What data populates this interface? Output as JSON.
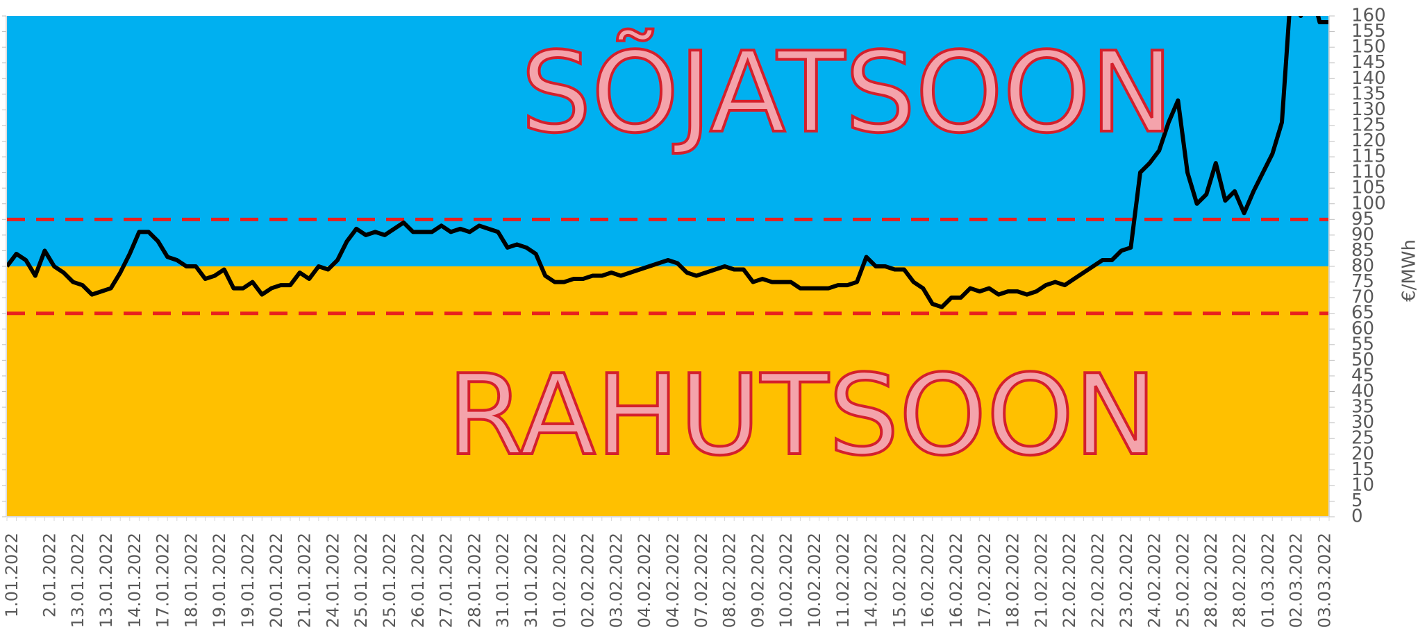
{
  "chart_data": {
    "type": "line",
    "y_label": "€/MWh",
    "categories": [
      "1.01.2022",
      null,
      null,
      null,
      "2.01.2022",
      null,
      null,
      "13.01.2022",
      null,
      null,
      "13.01.2022",
      null,
      null,
      "14.01.2022",
      null,
      null,
      "17.01.2022",
      null,
      null,
      "18.01.2022",
      null,
      null,
      "19.01.2022",
      null,
      null,
      "19.01.2022",
      null,
      null,
      "20.01.2022",
      null,
      null,
      "21.01.2022",
      null,
      null,
      "24.01.2022",
      null,
      null,
      "25.01.2022",
      null,
      null,
      "25.01.2022",
      null,
      null,
      "26.01.2022",
      null,
      null,
      "27.01.2022",
      null,
      null,
      "28.01.2022",
      null,
      null,
      "31.01.2022",
      null,
      null,
      "31.01.2022",
      null,
      null,
      "01.02.2022",
      null,
      null,
      "02.02.2022",
      null,
      null,
      "03.02.2022",
      null,
      null,
      "04.02.2022",
      null,
      null,
      "04.02.2022",
      null,
      null,
      "07.02.2022",
      null,
      null,
      "08.02.2022",
      null,
      null,
      "09.02.2022",
      null,
      null,
      "10.02.2022",
      null,
      null,
      "10.02.2022",
      null,
      null,
      "11.02.2022",
      null,
      null,
      "14.02.2022",
      null,
      null,
      "15.02.2022",
      null,
      null,
      "16.02.2022",
      null,
      null,
      "16.02.2022",
      null,
      null,
      "17.02.2022",
      null,
      null,
      "18.02.2022",
      null,
      null,
      "21.02.2022",
      null,
      null,
      "22.02.2022",
      null,
      null,
      "22.02.2022",
      null,
      null,
      "23.02.2022",
      null,
      null,
      "24.02.2022",
      null,
      null,
      "25.02.2022",
      null,
      null,
      "28.02.2022",
      null,
      null,
      "28.02.2022",
      null,
      null,
      "01.03.2022",
      null,
      null,
      "02.03.2022",
      null,
      null,
      "03.03.2022",
      null
    ],
    "series": [
      {
        "color": "#000000",
        "values": [
          80,
          84,
          82,
          77,
          85,
          80,
          78,
          75,
          74,
          71,
          72,
          73,
          78,
          84,
          91,
          91,
          88,
          83,
          82,
          80,
          80,
          76,
          77,
          79,
          73,
          73,
          75,
          71,
          73,
          74,
          74,
          78,
          76,
          80,
          79,
          82,
          88,
          92,
          90,
          91,
          90,
          92,
          94,
          91,
          91,
          91,
          93,
          91,
          92,
          91,
          93,
          92,
          91,
          86,
          87,
          86,
          84,
          77,
          75,
          75,
          76,
          76,
          77,
          77,
          78,
          77,
          78,
          79,
          80,
          81,
          82,
          81,
          78,
          77,
          78,
          79,
          80,
          79,
          79,
          75,
          76,
          75,
          75,
          75,
          73,
          73,
          73,
          73,
          74,
          74,
          75,
          83,
          80,
          80,
          79,
          79,
          75,
          73,
          68,
          67,
          70,
          70,
          73,
          72,
          73,
          71,
          72,
          72,
          71,
          72,
          74,
          75,
          74,
          76,
          78,
          80,
          82,
          82,
          85,
          86,
          110,
          113,
          117,
          126,
          133,
          110,
          100,
          103,
          113,
          101,
          104,
          97,
          104,
          110,
          116,
          126,
          170,
          160,
          170,
          158,
          158
        ]
      }
    ],
    "ylim": [
      0,
      160
    ],
    "yticks": [
      0,
      5,
      10,
      15,
      20,
      25,
      30,
      35,
      40,
      45,
      50,
      55,
      60,
      65,
      70,
      75,
      80,
      85,
      90,
      95,
      100,
      105,
      110,
      115,
      120,
      125,
      130,
      135,
      140,
      145,
      150,
      155,
      160
    ],
    "zones": [
      {
        "label": "SÕJATSOON",
        "from": 80,
        "to": 160,
        "color": "#00b0f0"
      },
      {
        "label": "RAHUTSOON",
        "from": 0,
        "to": 80,
        "color": "#ffc000"
      }
    ],
    "reference_lines": [
      {
        "value": 95,
        "color": "#e8201e"
      },
      {
        "value": 65,
        "color": "#e8201e"
      }
    ]
  }
}
